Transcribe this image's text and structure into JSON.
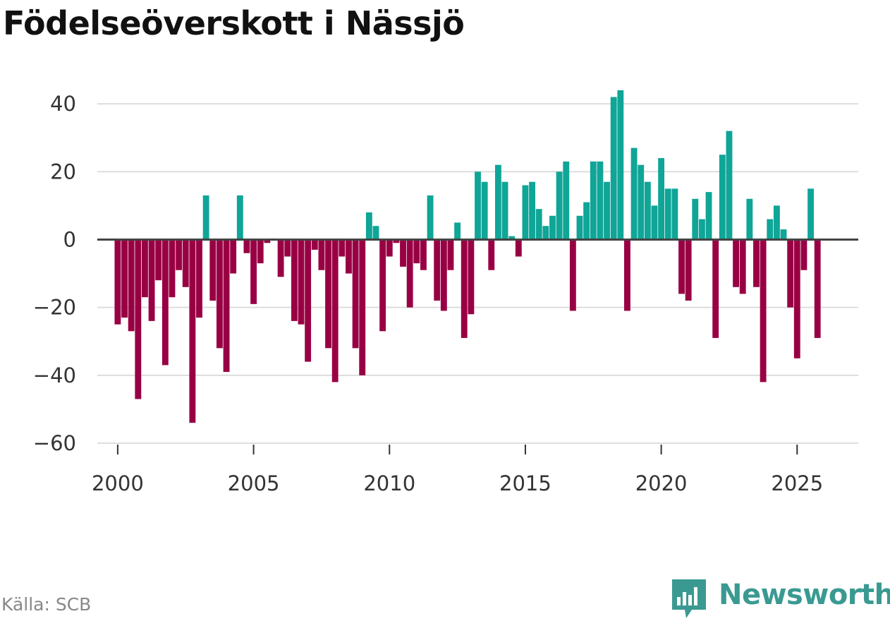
{
  "header": {
    "title": "Födelseöverskott i Nässjö"
  },
  "footer": {
    "source": "Källa: SCB",
    "brand": "Newsworthy"
  },
  "colors": {
    "positive": "#0fa597",
    "negative": "#990044",
    "brand": "#3a9a92"
  },
  "chart_data": {
    "type": "bar",
    "title": "Födelseöverskott i Nässjö",
    "xlabel": "",
    "ylabel": "",
    "frequency": "quarterly",
    "x_start": 2000,
    "xlim": [
      1999.25,
      2027.25
    ],
    "ylim": [
      -60,
      50
    ],
    "y_ticks": [
      40,
      20,
      0,
      -20,
      -40,
      -60
    ],
    "y_tick_labels": [
      "40",
      "20",
      "0",
      "−20",
      "−40",
      "−60"
    ],
    "x_ticks": [
      2000,
      2005,
      2010,
      2015,
      2020,
      2025
    ],
    "x_tick_labels": [
      "2000",
      "2005",
      "2010",
      "2015",
      "2020",
      "2025"
    ],
    "grid": true,
    "values": [
      -25,
      -23,
      -27,
      -47,
      -17,
      -24,
      -12,
      -37,
      -17,
      -9,
      -14,
      -54,
      -23,
      13,
      -18,
      -32,
      -39,
      -10,
      13,
      -4,
      -19,
      -7,
      -1,
      0,
      -11,
      -5,
      -24,
      -25,
      -36,
      -3,
      -9,
      -32,
      -42,
      -5,
      -10,
      -32,
      -40,
      8,
      4,
      -27,
      -5,
      -1,
      -8,
      -20,
      -7,
      -9,
      13,
      -18,
      -21,
      -9,
      5,
      -29,
      -22,
      20,
      17,
      -9,
      22,
      17,
      1,
      -5,
      16,
      17,
      9,
      4,
      7,
      20,
      23,
      -21,
      7,
      11,
      23,
      23,
      17,
      42,
      44,
      -21,
      27,
      22,
      17,
      10,
      24,
      15,
      15,
      -16,
      -18,
      12,
      6,
      14,
      -29,
      25,
      32,
      -14,
      -16,
      12,
      -14,
      -42,
      6,
      10,
      3,
      -20,
      -35,
      -9,
      15,
      -29
    ]
  }
}
